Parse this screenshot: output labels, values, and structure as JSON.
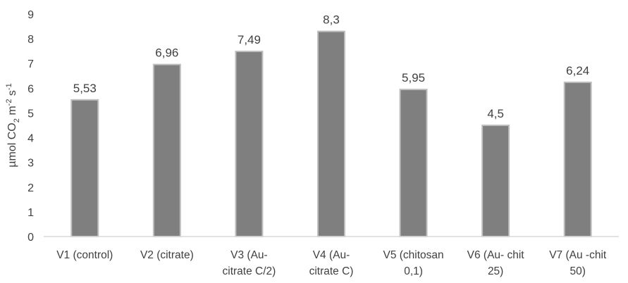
{
  "chart_data": {
    "type": "bar",
    "title": "",
    "xlabel": "",
    "ylabel": {
      "prefix": "µmol CO",
      "sub": "2",
      "mid": " m",
      "sup1": "-2",
      "mid2": " s",
      "sup2": "-1"
    },
    "ylim": [
      0,
      9
    ],
    "yticks": [
      "0",
      "1",
      "2",
      "3",
      "4",
      "5",
      "6",
      "7",
      "8",
      "9"
    ],
    "grid": false,
    "legend": "none",
    "categories": [
      [
        "V1 (control)"
      ],
      [
        "V2 (citrate)"
      ],
      [
        "V3 (Au-",
        "citrate C/2)"
      ],
      [
        "V4 (Au-",
        "citrate C)"
      ],
      [
        "V5 (chitosan",
        "0,1)"
      ],
      [
        "V6 (Au- chit",
        "25)"
      ],
      [
        "V7 (Au -chit",
        "50)"
      ]
    ],
    "values": [
      5.53,
      6.96,
      7.49,
      8.3,
      5.95,
      4.5,
      6.24
    ],
    "data_labels": [
      "5,53",
      "6,96",
      "7,49",
      "8,3",
      "5,95",
      "4,5",
      "6,24"
    ],
    "colors": {
      "bar_fill": "#7f7f7f",
      "bar_stroke": "#bfbfbf",
      "text": "#404040",
      "axis": "#d9d9d9"
    }
  }
}
